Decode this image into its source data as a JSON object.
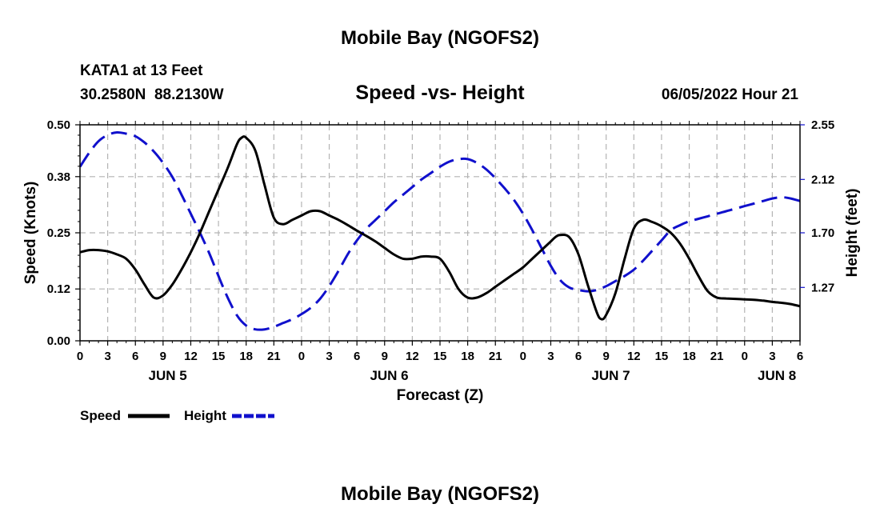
{
  "page": {
    "title_top": "Mobile Bay (NGOFS2)",
    "title_bottom": "Mobile Bay (NGOFS2)"
  },
  "chart_data": {
    "type": "line",
    "title": "Speed -vs- Height",
    "station": "KATA1 at 13 Feet",
    "coords": "30.2580N  88.2130W",
    "date": "06/05/2022 Hour 21",
    "xlabel": "Forecast (Z)",
    "ylabel_left": "Speed (Knots)",
    "ylabel_right": "Height (feet)",
    "x_range_hours": [
      0,
      78
    ],
    "x_ticks": [
      {
        "h": 0,
        "label": "0"
      },
      {
        "h": 3,
        "label": "3"
      },
      {
        "h": 6,
        "label": "6"
      },
      {
        "h": 9,
        "label": "9"
      },
      {
        "h": 12,
        "label": "12"
      },
      {
        "h": 15,
        "label": "15"
      },
      {
        "h": 18,
        "label": "18"
      },
      {
        "h": 21,
        "label": "21"
      },
      {
        "h": 24,
        "label": "0"
      },
      {
        "h": 27,
        "label": "3"
      },
      {
        "h": 30,
        "label": "6"
      },
      {
        "h": 33,
        "label": "9"
      },
      {
        "h": 36,
        "label": "12"
      },
      {
        "h": 39,
        "label": "15"
      },
      {
        "h": 42,
        "label": "18"
      },
      {
        "h": 45,
        "label": "21"
      },
      {
        "h": 48,
        "label": "0"
      },
      {
        "h": 51,
        "label": "3"
      },
      {
        "h": 54,
        "label": "6"
      },
      {
        "h": 57,
        "label": "9"
      },
      {
        "h": 60,
        "label": "12"
      },
      {
        "h": 63,
        "label": "15"
      },
      {
        "h": 66,
        "label": "18"
      },
      {
        "h": 69,
        "label": "21"
      },
      {
        "h": 72,
        "label": "0"
      },
      {
        "h": 75,
        "label": "3"
      },
      {
        "h": 78,
        "label": "6"
      }
    ],
    "day_labels": [
      {
        "h": 9.5,
        "label": "JUN 5"
      },
      {
        "h": 33.5,
        "label": "JUN 6"
      },
      {
        "h": 57.5,
        "label": "JUN 7"
      },
      {
        "h": 75.5,
        "label": "JUN 8"
      }
    ],
    "y_left": {
      "range": [
        0,
        0.5
      ],
      "ticks": [
        "0.00",
        "0.12",
        "0.25",
        "0.38",
        "0.50"
      ]
    },
    "y_right": {
      "range": [
        0.85,
        2.55
      ],
      "ticks": [
        "1.27",
        "1.70",
        "2.12",
        "2.55"
      ]
    },
    "legend": [
      {
        "name": "Speed",
        "color": "#000000",
        "dash": "solid"
      },
      {
        "name": "Height",
        "color": "#1010cc",
        "dash": "dashed"
      }
    ],
    "series": [
      {
        "name": "Speed",
        "axis": "left",
        "color": "#000000",
        "x": [
          0,
          1,
          2,
          3,
          4,
          5,
          6,
          7,
          8,
          9,
          10,
          11,
          12,
          13,
          14,
          15,
          16,
          17,
          17.5,
          18,
          19,
          20,
          21,
          22,
          23,
          24,
          25,
          26,
          27,
          28,
          29,
          30,
          31,
          32,
          33,
          34,
          35,
          36,
          37,
          38,
          39,
          40,
          41,
          42,
          43,
          44,
          45,
          46,
          47,
          48,
          49,
          50,
          51,
          51.5,
          52,
          53,
          54,
          55,
          56,
          56.5,
          57,
          58,
          59,
          60,
          61,
          62,
          63,
          64,
          65,
          66,
          67,
          68,
          69,
          70,
          71,
          72,
          73,
          74,
          75,
          76,
          77,
          78
        ],
        "values": [
          0.205,
          0.21,
          0.21,
          0.207,
          0.2,
          0.19,
          0.165,
          0.13,
          0.1,
          0.105,
          0.13,
          0.165,
          0.205,
          0.25,
          0.3,
          0.35,
          0.4,
          0.455,
          0.47,
          0.47,
          0.44,
          0.36,
          0.285,
          0.27,
          0.28,
          0.29,
          0.3,
          0.3,
          0.29,
          0.28,
          0.268,
          0.255,
          0.243,
          0.23,
          0.215,
          0.2,
          0.19,
          0.19,
          0.195,
          0.195,
          0.19,
          0.16,
          0.12,
          0.1,
          0.1,
          0.11,
          0.125,
          0.14,
          0.155,
          0.17,
          0.19,
          0.21,
          0.23,
          0.24,
          0.245,
          0.24,
          0.2,
          0.13,
          0.065,
          0.05,
          0.06,
          0.11,
          0.19,
          0.26,
          0.28,
          0.275,
          0.265,
          0.25,
          0.225,
          0.19,
          0.15,
          0.115,
          0.1,
          0.098,
          0.097,
          0.096,
          0.095,
          0.093,
          0.09,
          0.088,
          0.085,
          0.08
        ]
      },
      {
        "name": "Height",
        "axis": "right",
        "color": "#1010cc",
        "x": [
          0,
          1,
          2,
          3,
          4,
          5,
          6,
          7,
          8,
          9,
          10,
          11,
          12,
          13,
          14,
          15,
          16,
          17,
          18,
          19,
          20,
          21,
          22,
          23,
          24,
          25,
          26,
          27,
          28,
          29,
          30,
          31,
          32,
          33,
          34,
          35,
          36,
          37,
          38,
          39,
          40,
          41,
          42,
          43,
          44,
          45,
          46,
          47,
          48,
          49,
          50,
          51,
          52,
          53,
          54,
          55,
          56,
          57,
          58,
          59,
          60,
          61,
          62,
          63,
          64,
          65,
          66,
          67,
          68,
          69,
          70,
          71,
          72,
          73,
          74,
          75,
          76,
          77,
          78
        ],
        "values": [
          2.22,
          2.33,
          2.42,
          2.47,
          2.49,
          2.48,
          2.46,
          2.41,
          2.34,
          2.25,
          2.14,
          2.0,
          1.85,
          1.7,
          1.54,
          1.36,
          1.19,
          1.05,
          0.97,
          0.94,
          0.94,
          0.96,
          0.99,
          1.02,
          1.06,
          1.11,
          1.18,
          1.28,
          1.4,
          1.53,
          1.64,
          1.73,
          1.8,
          1.87,
          1.94,
          2.0,
          2.06,
          2.12,
          2.17,
          2.22,
          2.26,
          2.28,
          2.28,
          2.25,
          2.2,
          2.13,
          2.05,
          1.96,
          1.85,
          1.72,
          1.58,
          1.44,
          1.33,
          1.27,
          1.25,
          1.24,
          1.25,
          1.28,
          1.32,
          1.36,
          1.41,
          1.48,
          1.56,
          1.64,
          1.72,
          1.76,
          1.79,
          1.81,
          1.83,
          1.85,
          1.87,
          1.89,
          1.91,
          1.93,
          1.95,
          1.97,
          1.98,
          1.97,
          1.95
        ]
      }
    ]
  }
}
